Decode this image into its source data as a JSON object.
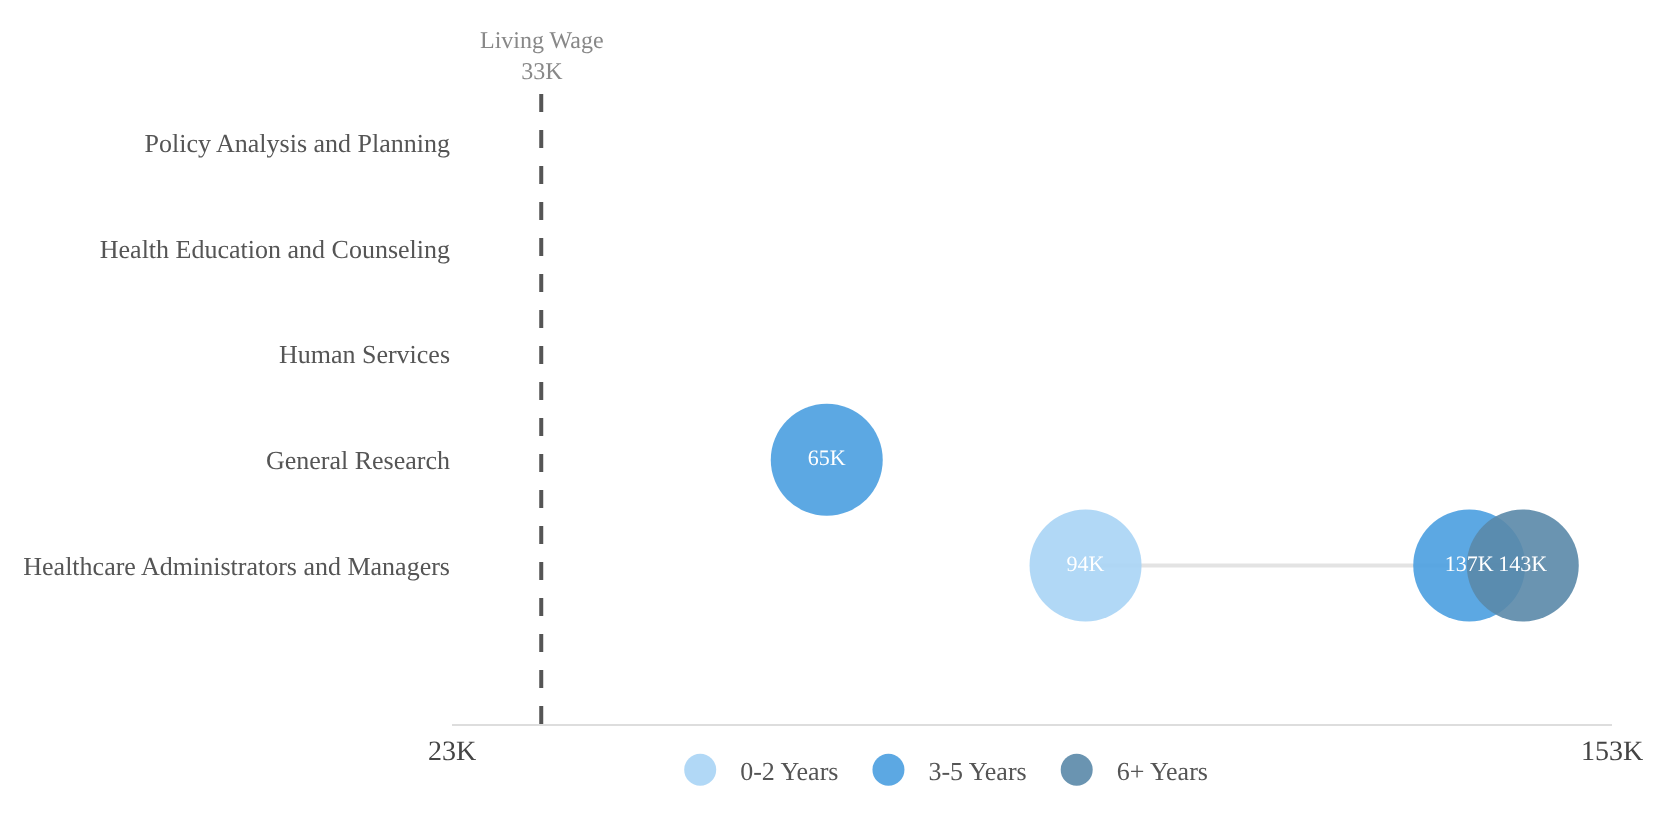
{
  "chart_data": {
    "type": "scatter",
    "orientation": "horizontal",
    "categories": [
      "Policy Analysis and Planning",
      "Health Education and Counseling",
      "Human Services",
      "General Research",
      "Healthcare Administrators and Managers"
    ],
    "series": [
      {
        "name": "0-2 Years",
        "color": "#a9d4f5",
        "values": [
          null,
          null,
          null,
          null,
          94
        ],
        "value_labels": [
          null,
          null,
          null,
          null,
          "94K"
        ]
      },
      {
        "name": "3-5 Years",
        "color": "#4a9fe0",
        "values": [
          null,
          null,
          null,
          65,
          137
        ],
        "value_labels": [
          null,
          null,
          null,
          "65K",
          "137K"
        ]
      },
      {
        "name": "6+ Years",
        "color": "#5a88a8",
        "values": [
          null,
          null,
          null,
          null,
          143
        ],
        "value_labels": [
          null,
          null,
          null,
          null,
          "143K"
        ]
      }
    ],
    "xlim": [
      23,
      153
    ],
    "xticks": [
      {
        "value": 23,
        "label": "23K"
      },
      {
        "value": 153,
        "label": "153K"
      }
    ],
    "ref_lines": [
      {
        "axis": "x",
        "value": 33,
        "label": "Living Wage\n33K",
        "color": "#555555",
        "line_style": "dashed"
      }
    ],
    "marker": "circle",
    "legend": "bottom"
  }
}
